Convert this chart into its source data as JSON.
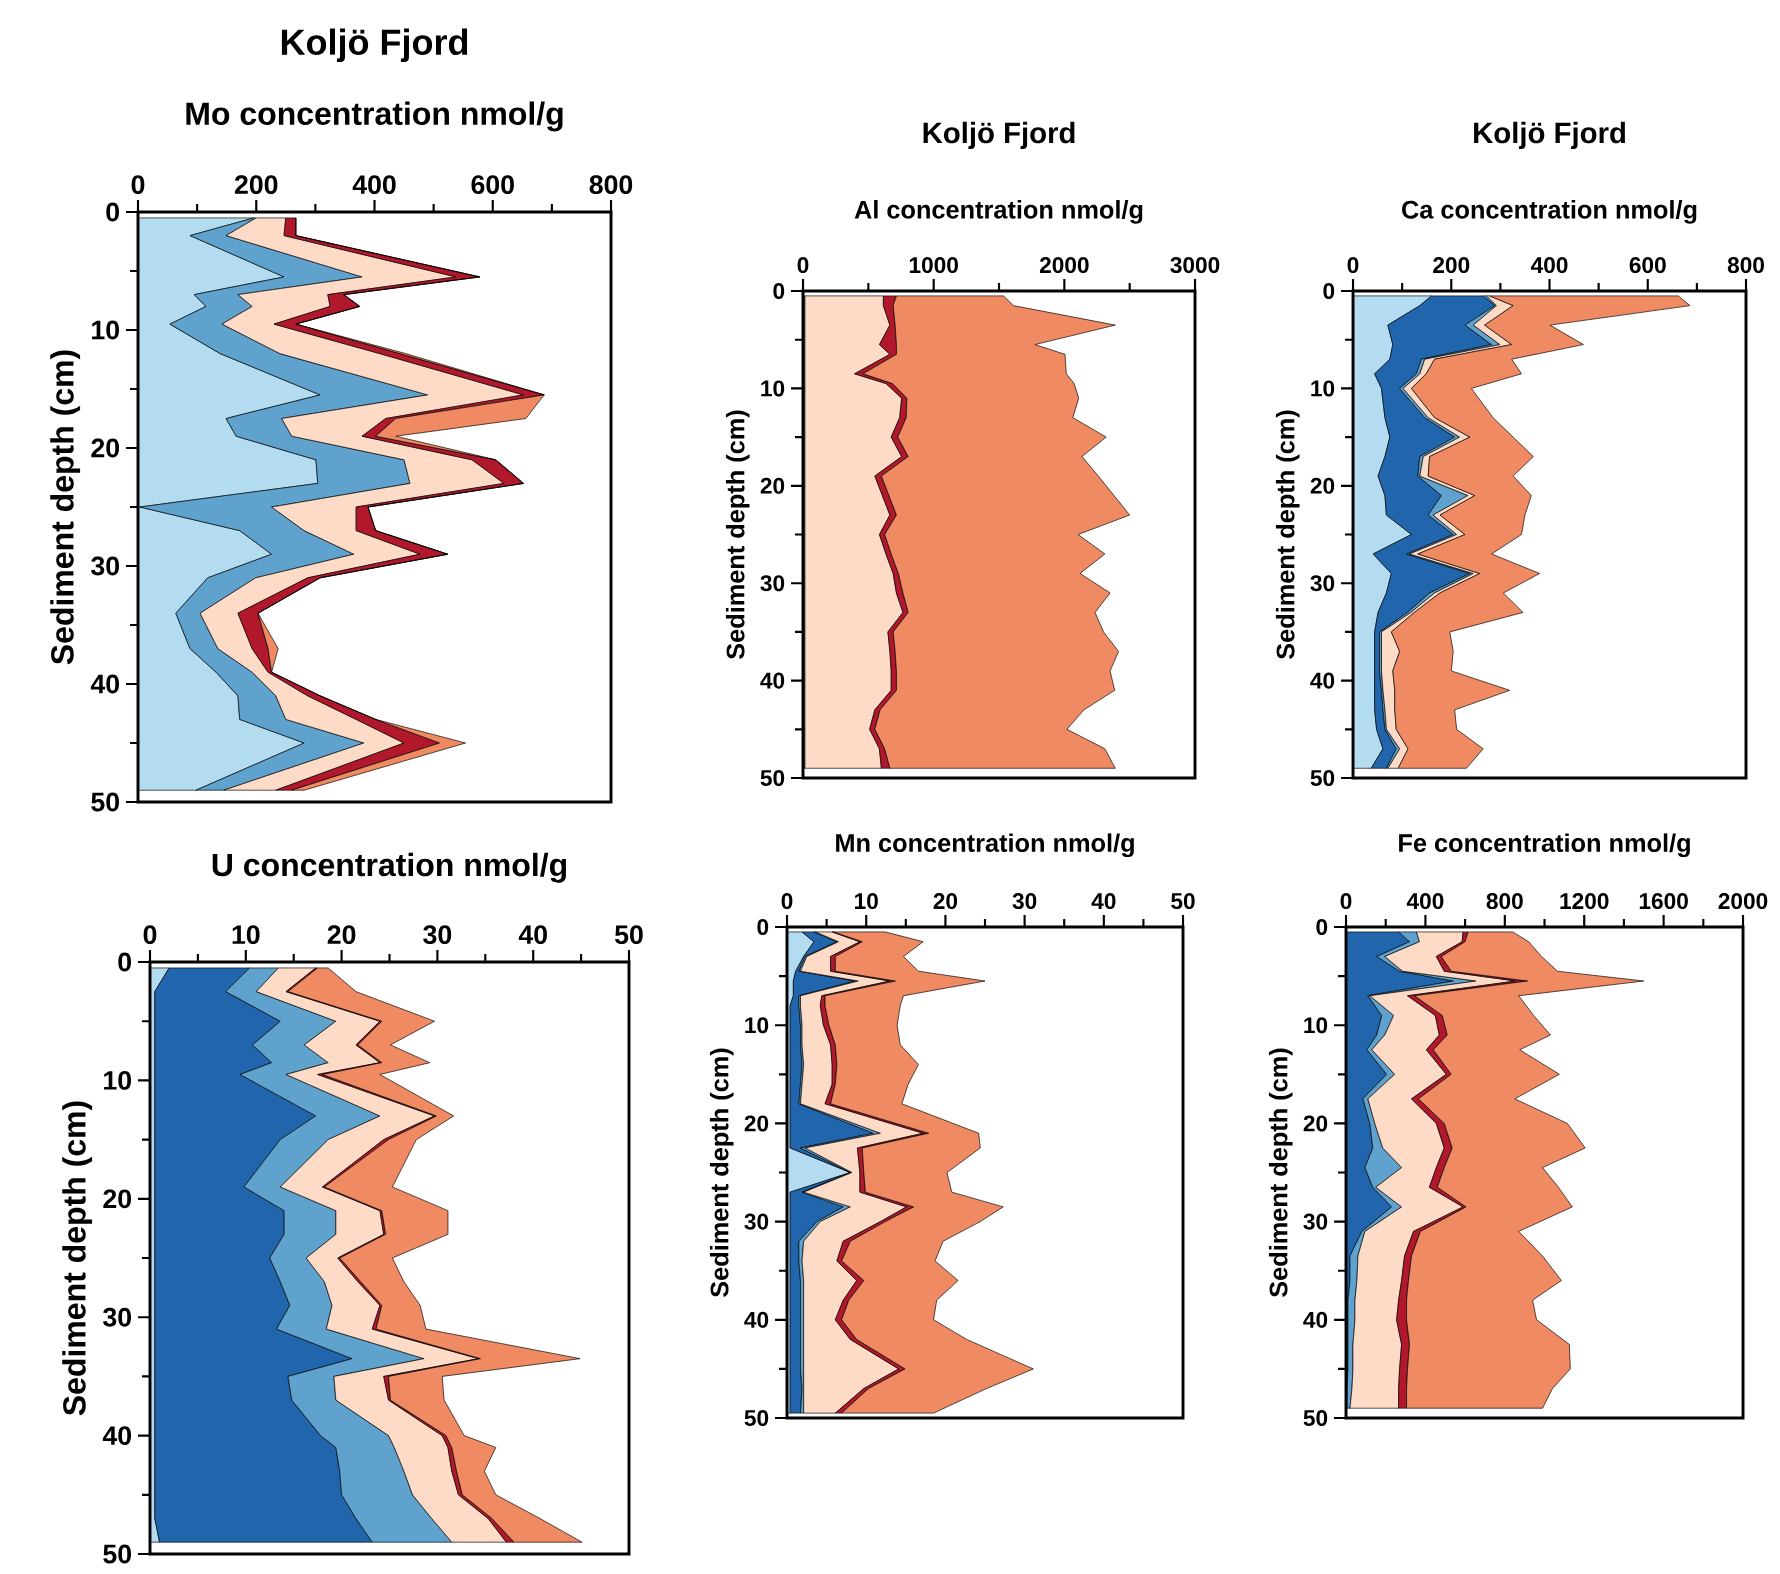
{
  "chart_data": [
    {
      "type": "area",
      "stacked": true,
      "orientation": "horizontal",
      "title": "Koljö Fjord",
      "xlabel": "Mo concentration nmol/g",
      "ylabel": "Sediment depth (cm)",
      "x": [
        0.5,
        2,
        5.5,
        7,
        8,
        9.5,
        12,
        15.5,
        17.5,
        19,
        21,
        23,
        25,
        27,
        29,
        31,
        34,
        37,
        39,
        41,
        43,
        45,
        49
      ],
      "series": [
        {
          "color": "#b4dcf0",
          "values": [
            196,
            88,
            247,
            95,
            115,
            54,
            139,
            308,
            149,
            166,
            301,
            304,
            3,
            172,
            226,
            118,
            64,
            88,
            132,
            169,
            172,
            281,
            98
          ]
        },
        {
          "color": "#5fa2cd",
          "values": [
            4,
            61,
            132,
            74,
            78,
            88,
            101,
            182,
            94,
            94,
            149,
            156,
            223,
            109,
            139,
            81,
            41,
            47,
            61,
            64,
            78,
            101,
            47
          ]
        },
        {
          "color": "#fddbc7",
          "values": [
            50,
            98,
            159,
            152,
            132,
            88,
            169,
            162,
            176,
            119,
            115,
            159,
            143,
            88,
            112,
            88,
            64,
            58,
            27,
            54,
            119,
            68,
            88
          ]
        },
        {
          "color": "#b2182b",
          "values": [
            17,
            20,
            40,
            27,
            50,
            37,
            34,
            35,
            17,
            23,
            40,
            33,
            20,
            33,
            47,
            21,
            34,
            27,
            6,
            21,
            33,
            60,
            27
          ]
        },
        {
          "color": "#ef8a62",
          "values": [
            0,
            0,
            0,
            0,
            0,
            0,
            10,
            0,
            220,
            34,
            0,
            0,
            0,
            0,
            0,
            0,
            0,
            17,
            0,
            0,
            0,
            44,
            21
          ]
        }
      ],
      "xlim": [
        0,
        800
      ],
      "xticks": [
        0,
        {
          "value": 100,
          "label": null
        },
        200,
        {
          "value": 300,
          "label": null
        },
        400,
        {
          "value": 500,
          "label": null
        },
        600,
        {
          "value": 700,
          "label": null
        },
        800
      ],
      "ylim": [
        50,
        0
      ],
      "yticks": [
        0,
        {
          "value": 5,
          "label": null
        },
        10,
        {
          "value": 15,
          "label": null
        },
        20,
        {
          "value": 25,
          "label": null
        },
        30,
        {
          "value": 35,
          "label": null
        },
        40,
        {
          "value": 45,
          "label": null
        },
        50
      ]
    },
    {
      "type": "area",
      "stacked": true,
      "orientation": "horizontal",
      "title": "Koljö Fjord",
      "xlabel": "Al concentration nmol/g",
      "ylabel": "Sediment depth (cm)",
      "x": [
        0.5,
        1.5,
        3.5,
        5.5,
        6.5,
        8.5,
        9.5,
        11,
        13,
        15,
        17,
        19,
        23,
        25,
        27,
        29,
        31,
        33,
        35,
        37,
        39,
        41,
        43,
        45,
        47,
        49
      ],
      "series": [
        {
          "color": "#5fa2cd",
          "values": [
            15,
            15,
            15,
            15,
            15,
            15,
            15,
            15,
            15,
            15,
            15,
            15,
            15,
            15,
            15,
            15,
            15,
            15,
            15,
            15,
            15,
            15,
            15,
            15,
            15,
            15
          ]
        },
        {
          "color": "#fddbc7",
          "values": [
            600,
            600,
            650,
            570,
            650,
            380,
            620,
            740,
            725,
            660,
            740,
            535,
            650,
            570,
            620,
            675,
            700,
            750,
            635,
            650,
            660,
            660,
            535,
            495,
            570,
            585
          ]
        },
        {
          "color": "#b2182b",
          "values": [
            100,
            75,
            40,
            130,
            50,
            65,
            50,
            40,
            50,
            50,
            50,
            50,
            50,
            40,
            40,
            40,
            50,
            40,
            40,
            40,
            40,
            40,
            40,
            40,
            40,
            65
          ]
        },
        {
          "color": "#ef8a62",
          "values": [
            820,
            920,
            1685,
            1060,
            1290,
            1555,
            1390,
            1315,
            1275,
            1595,
            1330,
            1660,
            1785,
            1480,
            1635,
            1390,
            1585,
            1430,
            1610,
            1710,
            1635,
            1670,
            1560,
            1470,
            1685,
            1725
          ]
        }
      ],
      "xlim": [
        0,
        3000
      ],
      "xticks": [
        0,
        {
          "value": 500,
          "label": null
        },
        1000,
        {
          "value": 1500,
          "label": null
        },
        2000,
        {
          "value": 2500,
          "label": null
        },
        3000
      ],
      "ylim": [
        50,
        0
      ],
      "yticks": [
        0,
        {
          "value": 5,
          "label": null
        },
        10,
        {
          "value": 15,
          "label": null
        },
        20,
        {
          "value": 25,
          "label": null
        },
        30,
        {
          "value": 35,
          "label": null
        },
        40,
        {
          "value": 45,
          "label": null
        },
        50
      ]
    },
    {
      "type": "area",
      "stacked": true,
      "orientation": "horizontal",
      "title": "Koljö Fjord",
      "xlabel": "Ca concentration nmol/g",
      "ylabel": "Sediment depth (cm)",
      "x": [
        0.5,
        1.5,
        3.5,
        5.5,
        7,
        8.5,
        10,
        13,
        15,
        17,
        19,
        21,
        23,
        25,
        27,
        29,
        31,
        33,
        35,
        37,
        39,
        41,
        43,
        45,
        47,
        49
      ],
      "series": [
        {
          "color": "#b4dcf0",
          "values": [
            160,
            136,
            71,
            81,
            75,
            44,
            58,
            65,
            75,
            65,
            51,
            65,
            68,
            119,
            41,
            78,
            68,
            51,
            44,
            44,
            44,
            44,
            44,
            48,
            61,
            37
          ]
        },
        {
          "color": "#2166ac",
          "values": [
            105,
            153,
            157,
            201,
            64,
            85,
            37,
            81,
            132,
            71,
            81,
            115,
            85,
            85,
            68,
            160,
            88,
            60,
            10,
            10,
            10,
            14,
            17,
            17,
            27,
            31
          ]
        },
        {
          "color": "#5fa2cd",
          "values": [
            7,
            3,
            17,
            17,
            7,
            7,
            7,
            7,
            10,
            7,
            4,
            54,
            10,
            7,
            6,
            7,
            10,
            7,
            4,
            4,
            4,
            3,
            4,
            3,
            7,
            3
          ]
        },
        {
          "color": "#fddbc7",
          "values": [
            6,
            34,
            23,
            24,
            20,
            13,
            17,
            13,
            21,
            13,
            17,
            14,
            14,
            17,
            17,
            13,
            11,
            7,
            20,
            37,
            23,
            24,
            20,
            20,
            17,
            21
          ]
        },
        {
          "color": "#ef8a62",
          "values": [
            384,
            360,
            133,
            146,
            157,
            194,
            122,
            119,
            88,
            211,
            173,
            115,
            173,
            115,
            150,
            122,
            129,
            221,
            119,
            109,
            119,
            234,
            122,
            123,
            153,
            139
          ]
        }
      ],
      "xlim": [
        0,
        800
      ],
      "xticks": [
        0,
        {
          "value": 100,
          "label": null
        },
        200,
        {
          "value": 300,
          "label": null
        },
        400,
        {
          "value": 500,
          "label": null
        },
        600,
        {
          "value": 700,
          "label": null
        },
        800
      ],
      "ylim": [
        50,
        0
      ],
      "yticks": [
        0,
        {
          "value": 5,
          "label": null
        },
        10,
        {
          "value": 15,
          "label": null
        },
        20,
        {
          "value": 25,
          "label": null
        },
        30,
        {
          "value": 35,
          "label": null
        },
        40,
        {
          "value": 45,
          "label": null
        },
        50
      ]
    },
    {
      "type": "area",
      "stacked": true,
      "orientation": "horizontal",
      "xlabel": "U concentration nmol/g",
      "ylabel": "Sediment depth (cm)",
      "x": [
        0.5,
        2.5,
        5,
        7,
        8.5,
        9.5,
        13,
        15,
        19,
        21,
        23,
        25,
        27,
        29,
        31,
        33.5,
        35,
        37,
        40,
        41,
        43,
        45,
        47,
        49
      ],
      "series": [
        {
          "color": "#b4dcf0",
          "values": [
            2,
            0.5,
            0.5,
            0.5,
            0.5,
            0.5,
            0.5,
            0.5,
            0.5,
            0.5,
            0.5,
            0.5,
            0.5,
            0.5,
            0.5,
            0.5,
            0.5,
            0.5,
            0.5,
            0.5,
            0.5,
            0.5,
            0.5,
            1
          ]
        },
        {
          "color": "#2166ac",
          "values": [
            8.4,
            7.4,
            13.1,
            10.2,
            12.2,
            8.9,
            16.8,
            13.1,
            9.3,
            13.5,
            13.5,
            12.0,
            13.1,
            14.1,
            12.7,
            20.6,
            13.9,
            14.3,
            17.3,
            18.9,
            19.3,
            19.5,
            21.0,
            22.2
          ]
        },
        {
          "color": "#5fa2cd",
          "values": [
            3.0,
            3.2,
            5.8,
            5.4,
            5.9,
            4.8,
            6.7,
            5.0,
            3.8,
            5.4,
            5.4,
            3.8,
            4.6,
            4.4,
            5.2,
            7.5,
            4.8,
            4.6,
            7.1,
            6.1,
            6.7,
            7.4,
            7.9,
            8.3
          ]
        },
        {
          "color": "#fddbc7",
          "values": [
            3.9,
            3.1,
            4.6,
            5.4,
            5.4,
            3.3,
            5.7,
            5.8,
            4.4,
            4.6,
            5.0,
            3.3,
            3.5,
            5.0,
            4.8,
            5.7,
            5.2,
            5.5,
            5.6,
            5.6,
            5.0,
            4.8,
            5.9,
            5.7
          ]
        },
        {
          "color": "#b2182b",
          "values": [
            0.2,
            0.2,
            0.2,
            0.2,
            0.2,
            0.5,
            0.2,
            0.5,
            0.2,
            0.2,
            0.2,
            0.2,
            0.3,
            0.2,
            0.4,
            0.2,
            0.5,
            0.2,
            0.4,
            0.4,
            0.5,
            0.4,
            0.4,
            0.8
          ]
        },
        {
          "color": "#ef8a62",
          "values": [
            1.1,
            7.1,
            5.5,
            3.4,
            5.0,
            6.0,
            1.8,
            2.9,
            7.1,
            6.9,
            6.5,
            5.5,
            4.5,
            4.0,
            5.2,
            10.4,
            5.6,
            5.6,
            1.9,
            4.6,
            2.9,
            3.5,
            5.0,
            7.1
          ]
        }
      ],
      "xlim": [
        0,
        50
      ],
      "xticks": [
        0,
        {
          "value": 5,
          "label": null
        },
        10,
        {
          "value": 15,
          "label": null
        },
        20,
        {
          "value": 25,
          "label": null
        },
        30,
        {
          "value": 35,
          "label": null
        },
        40,
        {
          "value": 45,
          "label": null
        },
        50
      ],
      "ylim": [
        50,
        0
      ],
      "yticks": [
        0,
        {
          "value": 5,
          "label": null
        },
        10,
        {
          "value": 15,
          "label": null
        },
        20,
        {
          "value": 25,
          "label": null
        },
        30,
        {
          "value": 35,
          "label": null
        },
        40,
        {
          "value": 45,
          "label": null
        },
        50
      ]
    },
    {
      "type": "area",
      "stacked": true,
      "orientation": "horizontal",
      "xlabel": "Mn concentration nmol/g",
      "ylabel": "Sediment depth (cm)",
      "x": [
        0.5,
        1.5,
        3,
        4.5,
        5.5,
        7,
        8,
        10,
        12,
        14,
        16,
        18,
        21,
        22.5,
        25,
        27,
        28.5,
        30,
        32,
        34,
        36,
        38,
        40,
        42,
        45,
        47,
        49.5
      ],
      "series": [
        {
          "color": "#b4dcf0",
          "values": [
            1.9,
            3.4,
            2.1,
            1.1,
            0.8,
            0.8,
            0.4,
            0.4,
            0.4,
            0.4,
            0.4,
            0.4,
            0.4,
            0.4,
            8.0,
            0.4,
            0.4,
            0.4,
            0.4,
            0.4,
            0.4,
            0.4,
            0.4,
            0.4,
            0.4,
            0.4,
            0.4
          ]
        },
        {
          "color": "#2166ac",
          "values": [
            1.5,
            2.9,
            0.2,
            0.4,
            7.8,
            0.7,
            1.1,
            1.3,
            1.3,
            1.5,
            1.3,
            1.1,
            10.5,
            1.3,
            0.0,
            1.5,
            6.7,
            3.4,
            1.1,
            1.1,
            1.3,
            1.3,
            1.3,
            1.3,
            1.3,
            1.5,
            1.3
          ]
        },
        {
          "color": "#5fa2cd",
          "values": [
            0.2,
            0.2,
            0.2,
            0.2,
            0.4,
            0.2,
            0.2,
            0.2,
            0.2,
            0.2,
            0.2,
            0.2,
            0.9,
            0.6,
            0.2,
            0.2,
            0.9,
            0.4,
            0.6,
            0.4,
            0.4,
            0.4,
            0.4,
            0.4,
            0.4,
            0.2,
            0.4
          ]
        },
        {
          "color": "#fddbc7",
          "values": [
            2.1,
            2.7,
            3.0,
            3.8,
            4.0,
            2.7,
            2.5,
            2.7,
            3.6,
            3.6,
            3.8,
            3.1,
            5.4,
            6.6,
            1.0,
            7.1,
            7.1,
            7.6,
            5.0,
            4.4,
            6.7,
            5.0,
            4.0,
            5.9,
            12.0,
            7.6,
            4.0
          ]
        },
        {
          "color": "#b2182b",
          "values": [
            0.2,
            0.3,
            0.6,
            0.6,
            0.7,
            0.4,
            0.6,
            0.7,
            0.6,
            0.6,
            0.4,
            0.7,
            0.7,
            0.6,
            0.5,
            0.7,
            0.9,
            0.6,
            0.9,
            0.6,
            0.9,
            0.7,
            0.8,
            0.8,
            0.8,
            0.6,
            0.8
          ]
        },
        {
          "color": "#ef8a62",
          "values": [
            6.5,
            7.7,
            8.6,
            10.5,
            11.3,
            9.9,
            9.5,
            8.6,
            8.2,
            10.3,
            9.2,
            9.0,
            6.3,
            14.9,
            10.5,
            10.9,
            11.3,
            12.0,
            11.7,
            11.8,
            11.9,
            11.1,
            11.6,
            13.9,
            16.2,
            14.9,
            11.6
          ]
        }
      ],
      "xlim": [
        0,
        50
      ],
      "xticks": [
        0,
        {
          "value": 5,
          "label": null
        },
        10,
        {
          "value": 15,
          "label": null
        },
        20,
        {
          "value": 25,
          "label": null
        },
        30,
        {
          "value": 35,
          "label": null
        },
        40,
        {
          "value": 45,
          "label": null
        },
        50
      ],
      "ylim": [
        50,
        0
      ],
      "yticks": [
        0,
        {
          "value": 5,
          "label": null
        },
        10,
        {
          "value": 15,
          "label": null
        },
        20,
        {
          "value": 25,
          "label": null
        },
        30,
        {
          "value": 35,
          "label": null
        },
        40,
        {
          "value": 45,
          "label": null
        },
        50
      ]
    },
    {
      "type": "area",
      "stacked": true,
      "orientation": "horizontal",
      "xlabel": "Fe concentration nmol/g",
      "ylabel": "Sediment depth (cm)",
      "x": [
        0.5,
        1.5,
        3,
        4.5,
        5.5,
        7,
        9,
        11,
        12.5,
        15,
        17.5,
        20,
        22.5,
        24.5,
        26.5,
        28.5,
        31,
        33.5,
        36,
        38,
        40,
        42.5,
        45,
        47,
        49
      ],
      "series": [
        {
          "color": "#2166ac",
          "values": [
            265,
            320,
            155,
            270,
            540,
            110,
            180,
            155,
            105,
            205,
            85,
            120,
            135,
            95,
            135,
            230,
            80,
            20,
            20,
            10,
            10,
            10,
            10,
            5,
            5
          ]
        },
        {
          "color": "#5fa2cd",
          "values": [
            90,
            50,
            40,
            15,
            115,
            10,
            60,
            40,
            25,
            40,
            25,
            25,
            50,
            185,
            15,
            50,
            15,
            40,
            35,
            35,
            35,
            25,
            25,
            25,
            15
          ]
        },
        {
          "color": "#fddbc7",
          "values": [
            235,
            215,
            260,
            210,
            200,
            190,
            210,
            275,
            275,
            260,
            220,
            310,
            310,
            175,
            270,
            310,
            245,
            235,
            225,
            220,
            210,
            245,
            235,
            235,
            245
          ]
        },
        {
          "color": "#b2182b",
          "values": [
            25,
            15,
            25,
            35,
            60,
            35,
            35,
            40,
            35,
            25,
            35,
            40,
            40,
            40,
            40,
            15,
            35,
            35,
            35,
            40,
            50,
            40,
            40,
            40,
            40
          ]
        },
        {
          "color": "#ef8a62",
          "values": [
            225,
            320,
            505,
            535,
            585,
            525,
            460,
            520,
            435,
            545,
            485,
            620,
            670,
            495,
            610,
            535,
            495,
            660,
            770,
            635,
            655,
            805,
            820,
            735,
            685
          ]
        }
      ],
      "xlim": [
        0,
        2000
      ],
      "xticks": [
        0,
        {
          "value": 200,
          "label": null
        },
        400,
        {
          "value": 600,
          "label": null
        },
        800,
        {
          "value": 1000,
          "label": null
        },
        1200,
        {
          "value": 1400,
          "label": null
        },
        1600,
        {
          "value": 1800,
          "label": null
        },
        2000
      ],
      "ylim": [
        50,
        0
      ],
      "yticks": [
        0,
        {
          "value": 5,
          "label": null
        },
        10,
        {
          "value": 15,
          "label": null
        },
        20,
        {
          "value": 25,
          "label": null
        },
        30,
        {
          "value": 35,
          "label": null
        },
        40,
        {
          "value": 45,
          "label": null
        },
        50
      ]
    }
  ]
}
